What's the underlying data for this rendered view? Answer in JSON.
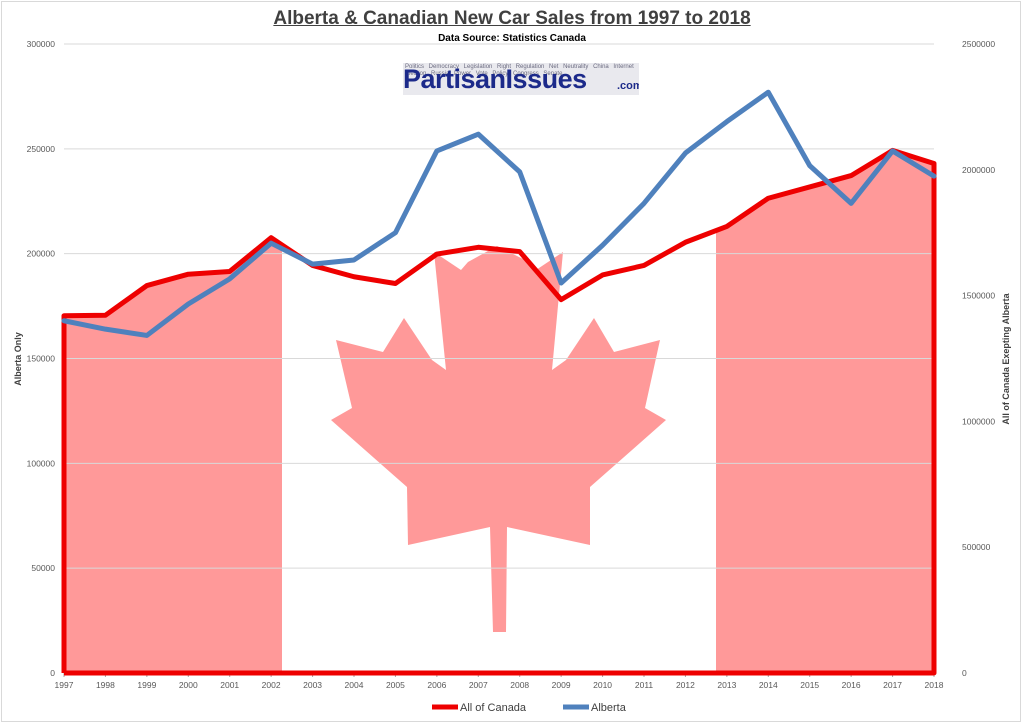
{
  "chart_data": {
    "type": "line",
    "title": "Alberta & Canadian New Car Sales from 1997 to 2018",
    "subtitle": "Data Source: Statistics Canada",
    "x": [
      "1997",
      "1998",
      "1999",
      "2000",
      "2001",
      "2002",
      "2003",
      "2004",
      "2005",
      "2006",
      "2007",
      "2008",
      "2009",
      "2010",
      "2011",
      "2012",
      "2013",
      "2014",
      "2015",
      "2016",
      "2017",
      "2018"
    ],
    "y_left": {
      "label": "Alberta Only",
      "ylim": [
        0,
        300000
      ],
      "ticks": [
        "0",
        "50000",
        "100000",
        "150000",
        "200000",
        "250000",
        "300000"
      ]
    },
    "y_right": {
      "label": "All of Canada Exepting Alberta",
      "ylim": [
        0,
        2500000
      ],
      "ticks": [
        "0",
        "500000",
        "1000000",
        "1500000",
        "2000000",
        "2500000"
      ]
    },
    "series": [
      {
        "name": "All of Canada",
        "axis": "right",
        "color": "#ee0000",
        "values": [
          1420000,
          1422000,
          1540000,
          1585000,
          1596000,
          1730000,
          1620000,
          1575000,
          1548000,
          1665000,
          1692000,
          1675000,
          1484000,
          1582000,
          1620000,
          1712000,
          1775000,
          1887000,
          1932000,
          1977000,
          2077000,
          2025000
        ]
      },
      {
        "name": "Alberta",
        "axis": "left",
        "color": "#4f81bd",
        "values": [
          168000,
          164000,
          161000,
          176000,
          188000,
          205000,
          195000,
          197000,
          210000,
          249000,
          257000,
          239000,
          186000,
          204000,
          224000,
          248000,
          263000,
          277000,
          242000,
          224000,
          249000,
          237000
        ]
      }
    ],
    "legend_position": "bottom",
    "grid": true,
    "background_flag": "Canadian flag",
    "area_fill_color": "#ff9999"
  },
  "logo": {
    "main": "PartisanIssues",
    "suffix": ".com",
    "words": "Politics Democracy Legislation Right Regulation Net Neutrality China Internet Election Russia Power Vote Policy Congress Senate"
  }
}
